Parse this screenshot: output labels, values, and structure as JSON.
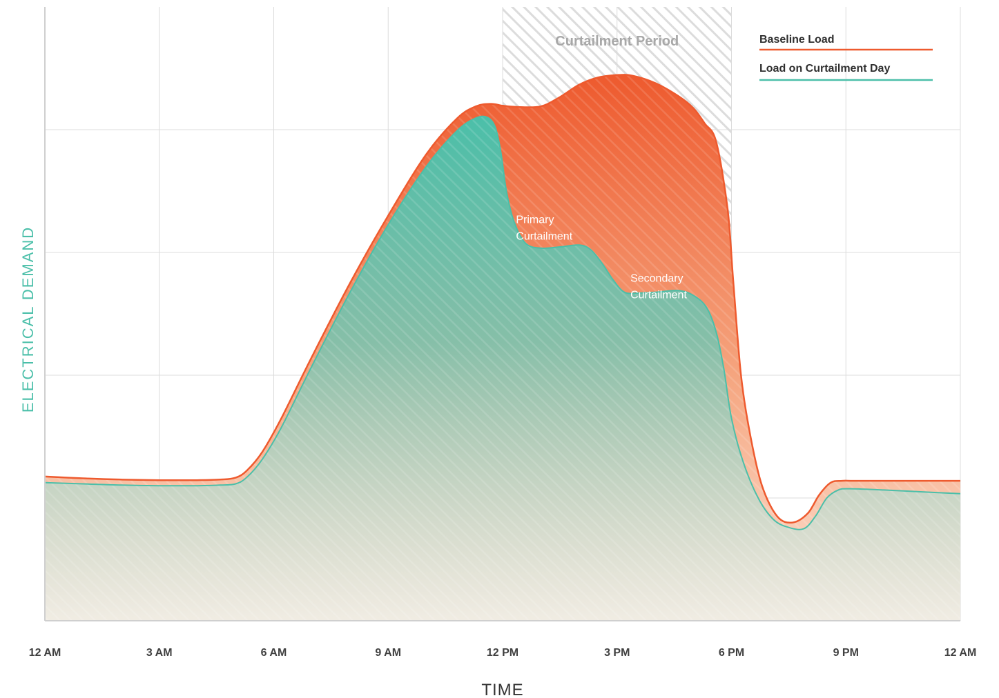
{
  "chart_data": {
    "type": "area",
    "xlabel": "TIME",
    "ylabel": "ELECTRICAL DEMAND",
    "x_unit": "hours",
    "xlim": [
      0,
      24
    ],
    "ylim": [
      0,
      100
    ],
    "x_ticks": [
      {
        "hour": 0,
        "label": "12 AM"
      },
      {
        "hour": 3,
        "label": "3 AM"
      },
      {
        "hour": 6,
        "label": "6 AM"
      },
      {
        "hour": 9,
        "label": "9 AM"
      },
      {
        "hour": 12,
        "label": "12 PM"
      },
      {
        "hour": 15,
        "label": "3 PM"
      },
      {
        "hour": 18,
        "label": "6 PM"
      },
      {
        "hour": 21,
        "label": "9 PM"
      },
      {
        "hour": 24,
        "label": "12 AM"
      }
    ],
    "y_gridlines": [
      20,
      40,
      60,
      80
    ],
    "grid": true,
    "curtailment_period": {
      "label": "Curtailment Period",
      "start_hour": 12,
      "end_hour": 18
    },
    "series": [
      {
        "name": "Baseline Load",
        "color": "#ee5a2e",
        "x": [
          0,
          1,
          2,
          3,
          4,
          4.6,
          5.0,
          5.3,
          5.7,
          6.2,
          7,
          8,
          9,
          10,
          10.8,
          11.3,
          11.7,
          12,
          12.4,
          13,
          13.5,
          14,
          14.5,
          15,
          15.4,
          16,
          16.6,
          17,
          17.3,
          17.6,
          17.9,
          18.05,
          18.25,
          18.5,
          18.8,
          19.2,
          19.6,
          20.0,
          20.3,
          20.6,
          20.9,
          21.2,
          22,
          23,
          24
        ],
        "y": [
          23.5,
          23.2,
          23.0,
          22.9,
          22.9,
          23.0,
          23.3,
          24.5,
          27.5,
          33,
          43,
          55,
          66,
          76,
          81.8,
          83.8,
          84.2,
          83.9,
          83.7,
          83.8,
          85.3,
          87.3,
          88.5,
          88.9,
          88.8,
          87.6,
          85.5,
          83.5,
          81.0,
          78.0,
          67.0,
          55.0,
          40.0,
          30.0,
          22.0,
          17.0,
          16.0,
          17.5,
          20.5,
          22.5,
          22.8,
          22.8,
          22.8,
          22.8,
          22.8
        ]
      },
      {
        "name": "Load on Curtailment Day",
        "color": "#4bbfa9",
        "x": [
          0,
          1,
          2,
          3,
          4,
          4.6,
          5.0,
          5.3,
          5.7,
          6.2,
          7,
          8,
          9,
          10,
          10.8,
          11.3,
          11.6,
          11.8,
          11.95,
          12.1,
          12.3,
          12.6,
          13.0,
          13.5,
          14.0,
          14.3,
          14.6,
          14.9,
          15.2,
          15.6,
          16.0,
          16.6,
          17.0,
          17.35,
          17.6,
          17.8,
          18.0,
          18.3,
          18.7,
          19.1,
          19.5,
          19.9,
          20.2,
          20.5,
          20.8,
          21.1,
          22,
          23,
          24
        ],
        "y": [
          22.5,
          22.3,
          22.1,
          22.0,
          22.0,
          22.1,
          22.3,
          23.4,
          26.3,
          31.5,
          41.5,
          53.5,
          64.5,
          74,
          79.8,
          81.9,
          82.0,
          80.5,
          76.5,
          70.0,
          65.0,
          61.5,
          60.7,
          60.9,
          61.2,
          60.5,
          58.3,
          55.5,
          53.5,
          53.4,
          53.5,
          53.8,
          53.0,
          51.0,
          47.0,
          41.0,
          33.0,
          26.0,
          20.0,
          16.5,
          15.2,
          15.0,
          17.0,
          20.0,
          21.3,
          21.5,
          21.3,
          21.0,
          20.7
        ]
      }
    ],
    "annotations": [
      {
        "lines": [
          "Primary",
          "Curtailment"
        ],
        "hour": 12.35,
        "value": 64.8
      },
      {
        "lines": [
          "Secondary",
          "Curtailment"
        ],
        "hour": 15.35,
        "value": 55.2
      }
    ],
    "legend": {
      "placement": "top-right"
    }
  },
  "colors": {
    "baseline": "#ee5a2e",
    "curtailment": "#4bbfa9",
    "ylabel": "#4bbfa9",
    "grid": "#dcdcdc",
    "hatch": "#dedede"
  }
}
